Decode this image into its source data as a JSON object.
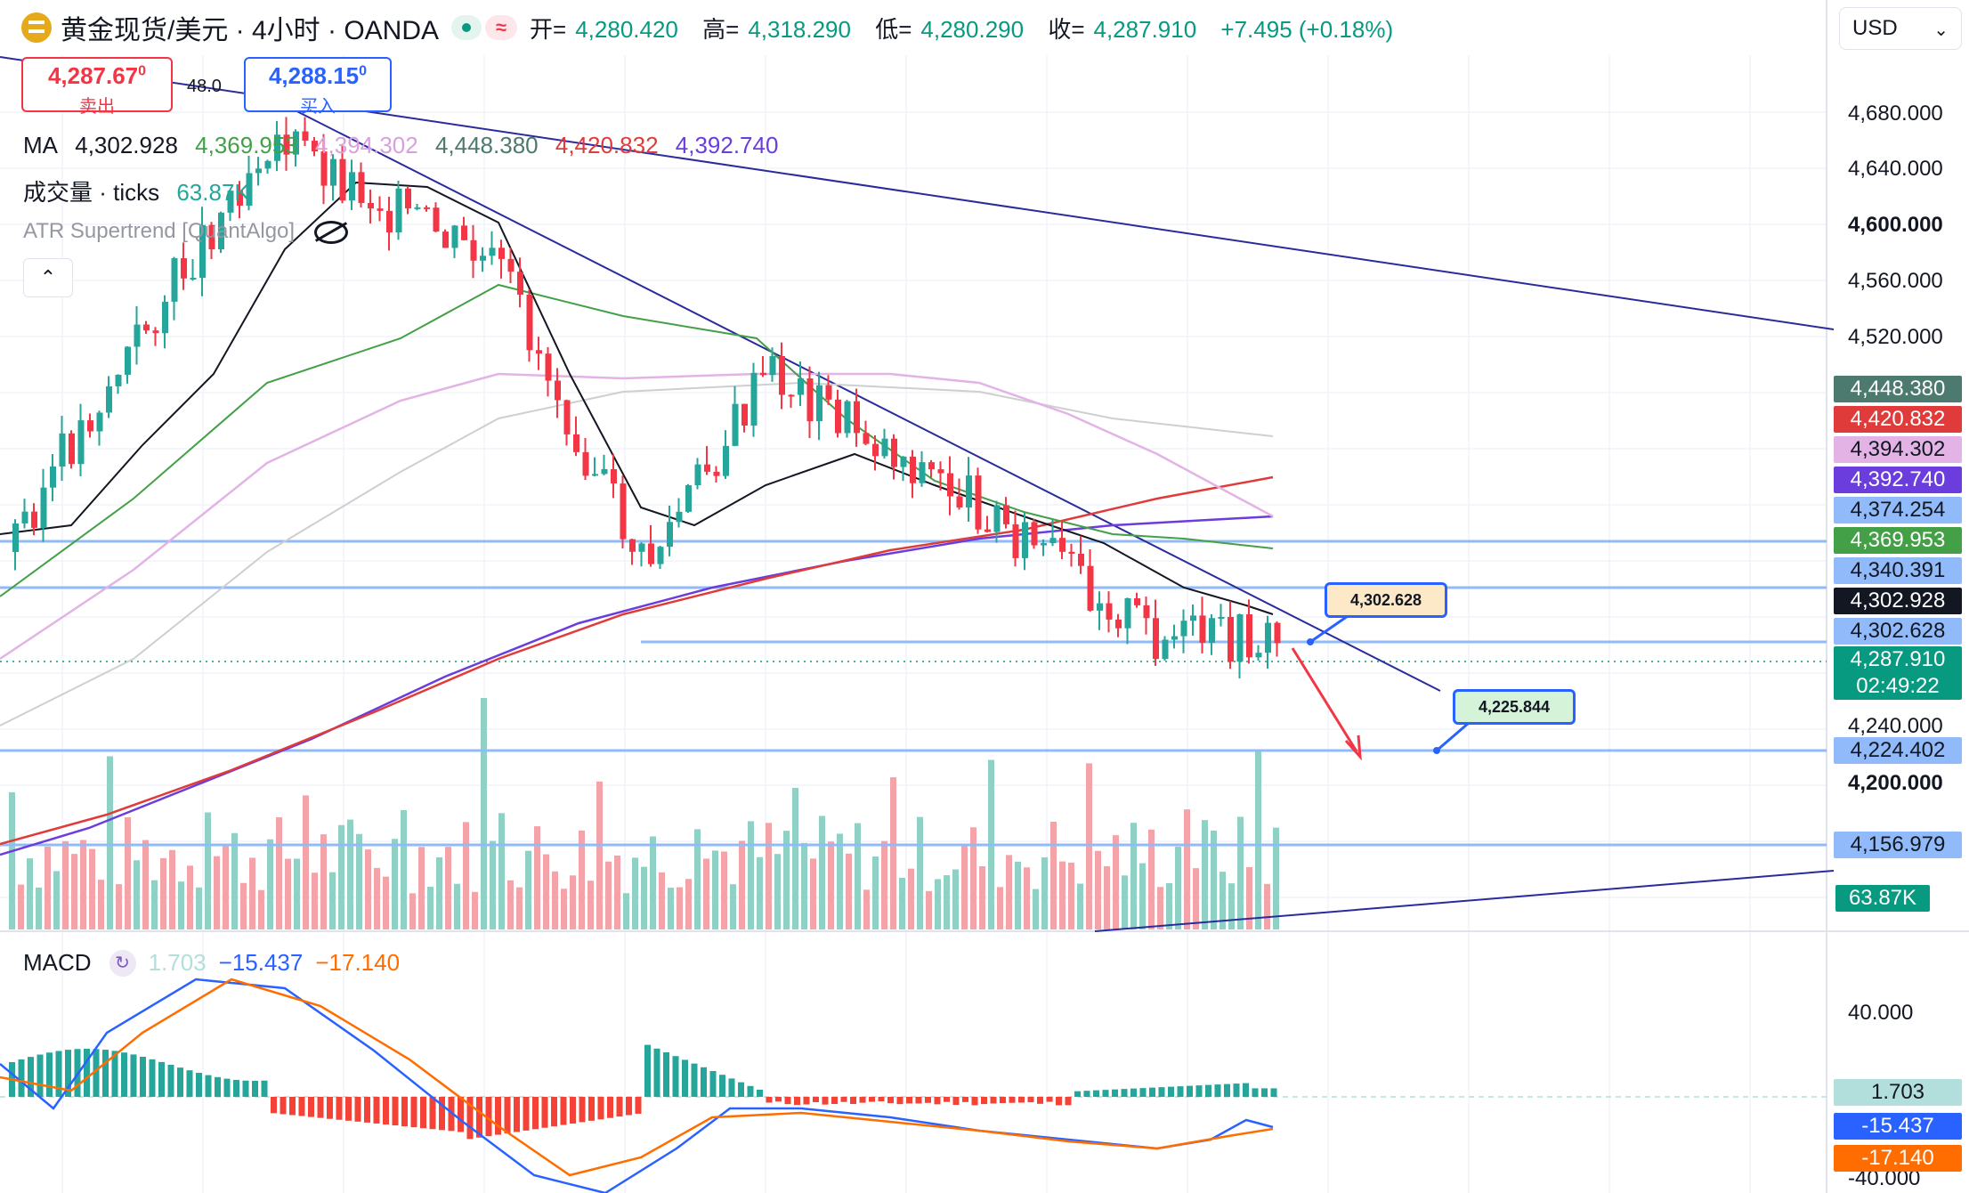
{
  "header": {
    "symbol_title": "黄金现货/美元 · 4小时 · OANDA",
    "open_label": "开=",
    "open": "4,280.420",
    "high_label": "高=",
    "high": "4,318.290",
    "low_label": "低=",
    "low": "4,280.290",
    "close_label": "收=",
    "close": "4,287.910",
    "change": "+7.495 (+0.18%)",
    "wave_glyph": "≈"
  },
  "currency_selector": {
    "label": "USD",
    "icon": "chevron-down-icon"
  },
  "trade": {
    "sell_price": "4,287.67",
    "sell_price_sup": "0",
    "sell_label": "卖出",
    "buy_price": "4,288.15",
    "buy_price_sup": "0",
    "buy_label": "买入",
    "spread": "48.0"
  },
  "legend": {
    "ma_label": "MA",
    "ma_values": [
      "4,302.928",
      "4,369.953",
      "4,394.302",
      "4,448.380",
      "4,420.832",
      "4,392.740"
    ],
    "volume_label": "成交量 · ticks",
    "volume_value": "63.87K",
    "supertrend_label": "ATR Supertrend [QuantAlgo]"
  },
  "macd": {
    "label": "MACD",
    "hist": "1.703",
    "macd": "−15.437",
    "signal": "−17.140"
  },
  "axis": {
    "ticks": [
      "4,680.000",
      "4,640.000",
      "4,600.000",
      "4,560.000",
      "4,520.000",
      "4,240.000",
      "4,200.000"
    ],
    "macd_ticks": [
      "40.000",
      "-40.000"
    ]
  },
  "tags": [
    {
      "value": "4,448.380",
      "color": "#4c7a6e"
    },
    {
      "value": "4,420.832",
      "color": "#e03b3b"
    },
    {
      "value": "4,394.302",
      "color": "#e3b3e6"
    },
    {
      "value": "4,392.740",
      "color": "#6a3ddc"
    },
    {
      "value": "4,374.254",
      "color": "#90baf9"
    },
    {
      "value": "4,369.953",
      "color": "#43a047"
    },
    {
      "value": "4,340.391",
      "color": "#90baf9"
    },
    {
      "value": "4,302.928",
      "color": "#131722"
    },
    {
      "value": "4,302.628",
      "color": "#90baf9"
    },
    {
      "value": "4,224.402",
      "color": "#90baf9"
    },
    {
      "value": "4,156.979",
      "color": "#90baf9"
    },
    {
      "value": "63.87K",
      "color": "#089981"
    },
    {
      "value": "1.703",
      "color": "#b2dfdb"
    },
    {
      "value": "-15.437",
      "color": "#2962ff"
    },
    {
      "value": "-17.140",
      "color": "#ff6d00"
    }
  ],
  "last_price": {
    "value": "4,287.910",
    "countdown": "02:49:22"
  },
  "callouts": {
    "upper": "4,302.628",
    "lower": "4,225.844"
  }
}
